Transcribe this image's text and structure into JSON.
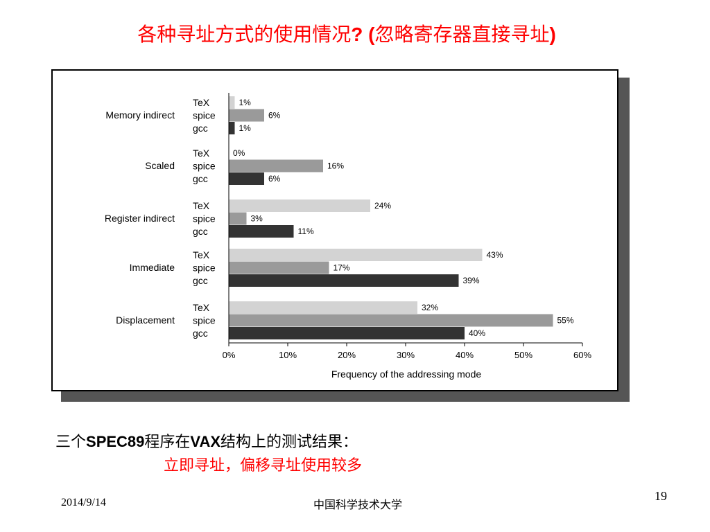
{
  "slide": {
    "title_part1": "各种寻址方式的使用情况",
    "title_part2": "? (",
    "title_part3": "忽略寄存器直接寻址",
    "title_part4": ")",
    "caption_prefix": "三个",
    "caption_bold1": "SPEC89",
    "caption_mid": "程序在",
    "caption_bold2": "VAX",
    "caption_suffix": "结构上的测试结果：",
    "highlight": "立即寻址，偏移寻址使用较多",
    "footer_date": "2014/9/14",
    "footer_org": "中国科学技术大学",
    "page_number": "19"
  },
  "chart_data": {
    "type": "bar",
    "orientation": "horizontal",
    "title": "",
    "xlabel": "Frequency of the addressing mode",
    "ylabel": "",
    "xlim": [
      0,
      60
    ],
    "x_ticks": [
      "0%",
      "10%",
      "20%",
      "30%",
      "40%",
      "50%",
      "60%"
    ],
    "categories": [
      "Memory indirect",
      "Scaled",
      "Register indirect",
      "Immediate",
      "Displacement"
    ],
    "series": [
      {
        "name": "TeX",
        "color": "#d3d3d3",
        "values": [
          1,
          0,
          24,
          43,
          32
        ]
      },
      {
        "name": "spice",
        "color": "#9a9a9a",
        "values": [
          6,
          16,
          3,
          17,
          55
        ]
      },
      {
        "name": "gcc",
        "color": "#333333",
        "values": [
          1,
          6,
          11,
          39,
          40
        ]
      }
    ],
    "grid": false
  }
}
